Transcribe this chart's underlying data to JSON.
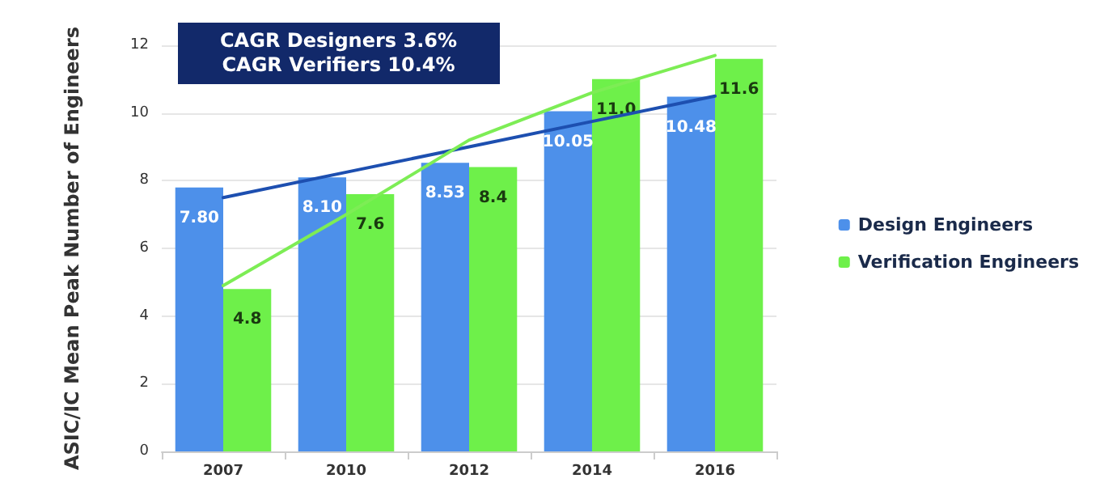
{
  "chart_data": {
    "type": "bar",
    "ylabel": "ASIC/IC Mean Peak Number of Engineers",
    "categories": [
      "2007",
      "2010",
      "2012",
      "2014",
      "2016"
    ],
    "series": [
      {
        "name": "Design Engineers",
        "color": "#4d90ea",
        "values": [
          7.8,
          8.1,
          8.53,
          10.05,
          10.48
        ],
        "value_labels": [
          "7.80",
          "8.10",
          "8.53",
          "10.05",
          "10.48"
        ]
      },
      {
        "name": "Verification Engineers",
        "color": "#6ef04a",
        "values": [
          4.8,
          7.6,
          8.4,
          11.0,
          11.6
        ],
        "value_labels": [
          "4.8",
          "7.6",
          "8.4",
          "11.0",
          "11.6"
        ]
      },
      {
        "type": "line",
        "color": "#1d4fb0",
        "values": [
          7.5,
          8.25,
          9.0,
          9.75,
          10.5
        ]
      },
      {
        "type": "line",
        "color": "#7ded55",
        "values": [
          4.9,
          7.0,
          9.2,
          10.6,
          11.7
        ]
      }
    ],
    "annotations": [
      "CAGR Designers 3.6%",
      "CAGR Verifiers 10.4%"
    ],
    "ylim": [
      0,
      12
    ],
    "yticks": [
      0,
      2,
      4,
      6,
      8,
      10,
      12
    ],
    "grid": "y",
    "legend": "right",
    "marker": "none",
    "line_style": "solid"
  }
}
